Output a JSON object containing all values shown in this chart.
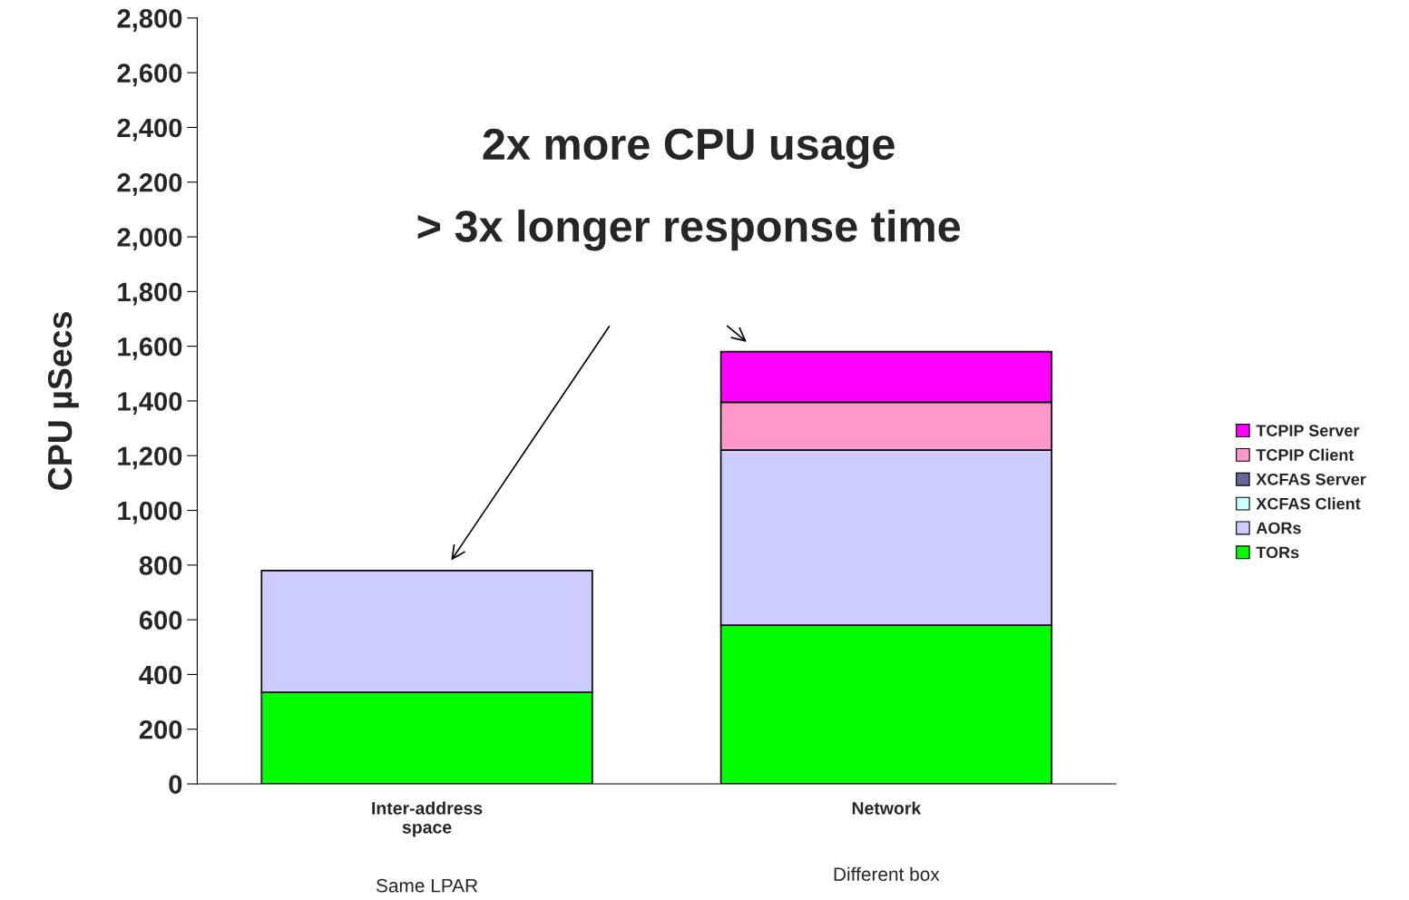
{
  "chart_data": {
    "type": "bar",
    "stacked": true,
    "ylabel": "CPU µSecs",
    "categories": [
      "Inter-address\nspace",
      "Network"
    ],
    "series": [
      {
        "name": "TORs",
        "color": "#00ff00",
        "values": [
          335,
          580
        ]
      },
      {
        "name": "AORs",
        "color": "#ccccff",
        "values": [
          445,
          640
        ]
      },
      {
        "name": "XCFAS Client",
        "color": "#ccffff",
        "values": [
          null,
          null
        ]
      },
      {
        "name": "XCFAS Server",
        "color": "#666699",
        "values": [
          null,
          null
        ]
      },
      {
        "name": "TCPIP Client",
        "color": "#ff99cc",
        "values": [
          null,
          175
        ]
      },
      {
        "name": "TCPIP Server",
        "color": "#ff00ff",
        "values": [
          null,
          185
        ]
      }
    ],
    "ylim": [
      0,
      2800
    ],
    "yticks": [
      {
        "value": 0,
        "label": "0"
      },
      {
        "value": 200,
        "label": "200"
      },
      {
        "value": 400,
        "label": "400"
      },
      {
        "value": 600,
        "label": "600"
      },
      {
        "value": 800,
        "label": "800"
      },
      {
        "value": 1000,
        "label": "1,000"
      },
      {
        "value": 1200,
        "label": "1,200"
      },
      {
        "value": 1400,
        "label": "1,400"
      },
      {
        "value": 1600,
        "label": "1,600"
      },
      {
        "value": 1800,
        "label": "1,800"
      },
      {
        "value": 2000,
        "label": "2,000"
      },
      {
        "value": 2200,
        "label": "2,200"
      },
      {
        "value": 2400,
        "label": "2,400"
      },
      {
        "value": 2600,
        "label": "2,600"
      },
      {
        "value": 2800,
        "label": "2,800"
      }
    ],
    "annotations": [
      "2x more CPU usage",
      "> 3x longer response time",
      "Same LPAR",
      "Different box"
    ],
    "legend": "right",
    "grid": false
  }
}
